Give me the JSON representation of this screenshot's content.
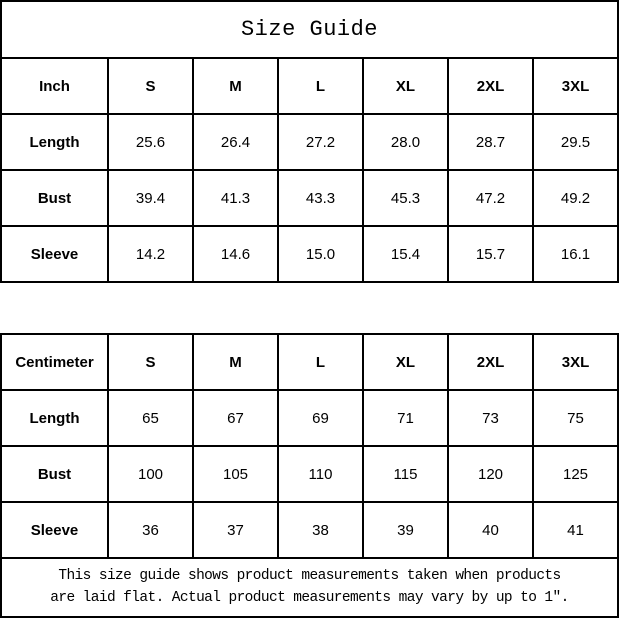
{
  "title": "Size Guide",
  "tables": [
    {
      "unit": "Inch",
      "sizes": [
        "S",
        "M",
        "L",
        "XL",
        "2XL",
        "3XL"
      ],
      "rows": [
        {
          "label": "Length",
          "values": [
            "25.6",
            "26.4",
            "27.2",
            "28.0",
            "28.7",
            "29.5"
          ]
        },
        {
          "label": "Bust",
          "values": [
            "39.4",
            "41.3",
            "43.3",
            "45.3",
            "47.2",
            "49.2"
          ]
        },
        {
          "label": "Sleeve",
          "values": [
            "14.2",
            "14.6",
            "15.0",
            "15.4",
            "15.7",
            "16.1"
          ]
        }
      ]
    },
    {
      "unit": "Centimeter",
      "sizes": [
        "S",
        "M",
        "L",
        "XL",
        "2XL",
        "3XL"
      ],
      "rows": [
        {
          "label": "Length",
          "values": [
            "65",
            "67",
            "69",
            "71",
            "73",
            "75"
          ]
        },
        {
          "label": "Bust",
          "values": [
            "100",
            "105",
            "110",
            "115",
            "120",
            "125"
          ]
        },
        {
          "label": "Sleeve",
          "values": [
            "36",
            "37",
            "38",
            "39",
            "40",
            "41"
          ]
        }
      ]
    }
  ],
  "footer": {
    "line1": "This size guide shows product measurements taken when products",
    "line2": "are laid flat. Actual product measurements may vary by up to 1″."
  },
  "colors": {
    "border": "#000000",
    "text": "#000000",
    "background": "#ffffff"
  }
}
